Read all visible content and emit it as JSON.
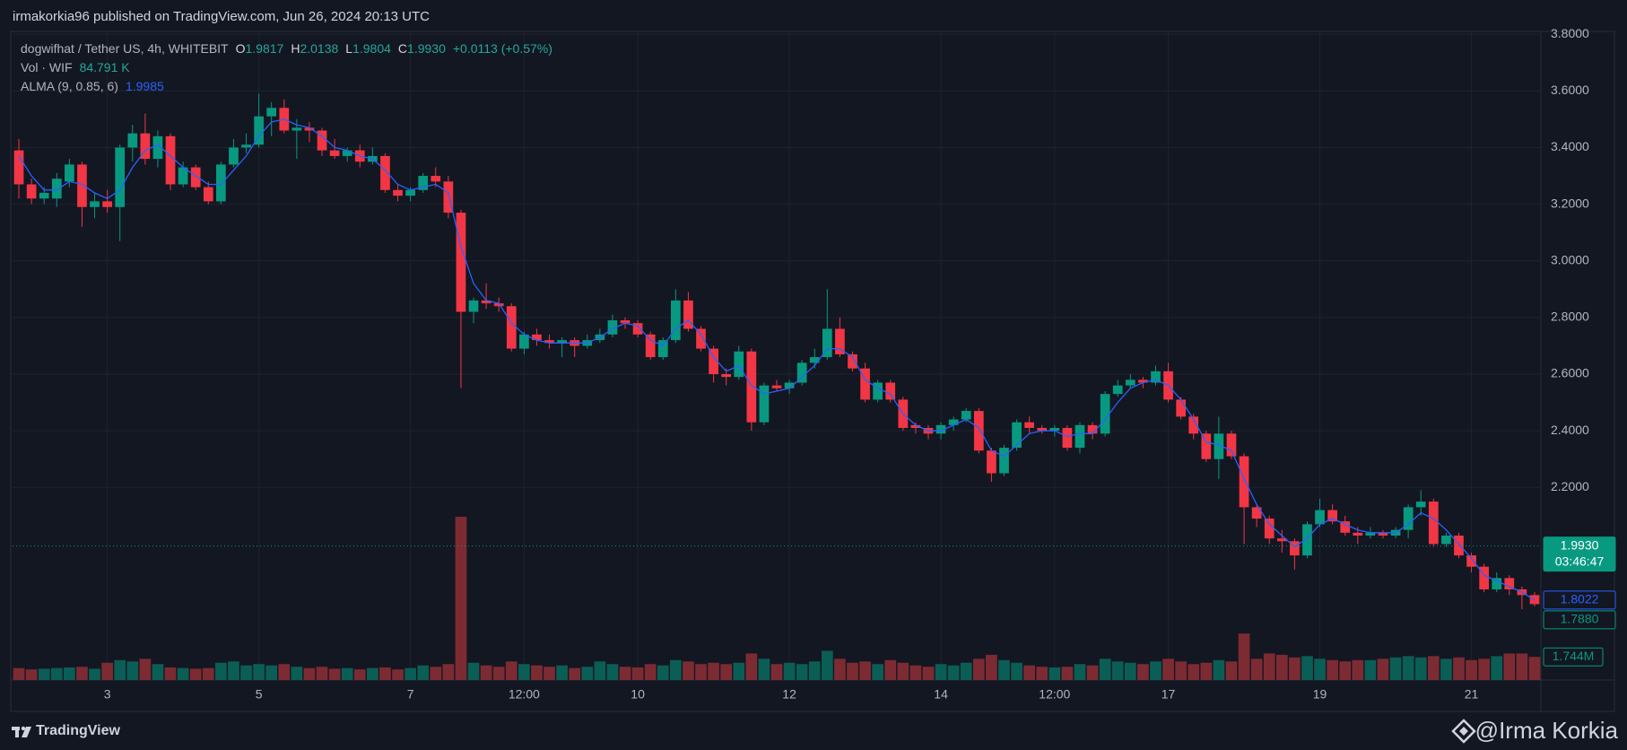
{
  "header": {
    "published": "irmakorkia96 published on TradingView.com, Jun 26, 2024 20:13 UTC"
  },
  "legend": {
    "symbol": "dogwifhat / Tether US, 4h, WHITEBIT",
    "ohlc": [
      {
        "key": "O",
        "value": "1.9817"
      },
      {
        "key": "H",
        "value": "2.0138"
      },
      {
        "key": "L",
        "value": "1.9804"
      },
      {
        "key": "C",
        "value": "1.9930"
      }
    ],
    "change": "+0.0113 (+0.57%)",
    "volume_name": "Vol · WIF",
    "volume_value": "84.791 K",
    "alma_value": "1.9985"
  },
  "chart_data": {
    "type": "candlestick",
    "categories": [
      null,
      null,
      null,
      null,
      null,
      null,
      null,
      "3",
      null,
      null,
      null,
      null,
      null,
      null,
      null,
      null,
      null,
      null,
      null,
      "5",
      null,
      null,
      null,
      null,
      null,
      null,
      null,
      null,
      null,
      null,
      null,
      "7",
      null,
      null,
      null,
      null,
      null,
      null,
      null,
      null,
      "12:00",
      null,
      null,
      null,
      null,
      null,
      null,
      null,
      null,
      "10",
      null,
      null,
      null,
      null,
      null,
      null,
      null,
      null,
      null,
      null,
      null,
      "12",
      null,
      null,
      null,
      null,
      null,
      null,
      null,
      null,
      null,
      null,
      null,
      "14",
      null,
      null,
      null,
      null,
      null,
      null,
      null,
      null,
      "12:00",
      null,
      null,
      null,
      null,
      null,
      null,
      null,
      null,
      "17",
      null,
      null,
      null,
      null,
      null,
      null,
      null,
      null,
      null,
      null,
      null,
      "19",
      null,
      null,
      null,
      null,
      null,
      null,
      null,
      null,
      null,
      null,
      null,
      "21",
      null,
      null,
      null,
      null,
      null
    ],
    "open": [
      3.39,
      3.27,
      3.22,
      3.22,
      3.28,
      3.34,
      3.19,
      3.21,
      3.19,
      3.4,
      3.45,
      3.36,
      3.44,
      3.27,
      3.33,
      3.26,
      3.21,
      3.34,
      3.4,
      3.41,
      3.51,
      3.54,
      3.46,
      3.47,
      3.46,
      3.39,
      3.37,
      3.39,
      3.35,
      3.37,
      3.25,
      3.23,
      3.25,
      3.3,
      3.28,
      3.17,
      2.82,
      2.86,
      2.85,
      2.84,
      2.69,
      2.74,
      2.72,
      2.71,
      2.72,
      2.7,
      2.72,
      2.74,
      2.79,
      2.78,
      2.74,
      2.66,
      2.72,
      2.86,
      2.76,
      2.69,
      2.6,
      2.59,
      2.68,
      2.43,
      2.56,
      2.55,
      2.57,
      2.64,
      2.66,
      2.76,
      2.67,
      2.62,
      2.51,
      2.57,
      2.51,
      2.42,
      2.41,
      2.39,
      2.42,
      2.44,
      2.47,
      2.33,
      2.25,
      2.34,
      2.43,
      2.41,
      2.4,
      2.41,
      2.34,
      2.42,
      2.39,
      2.53,
      2.56,
      2.58,
      2.57,
      2.61,
      2.51,
      2.45,
      2.39,
      2.3,
      2.39,
      2.31,
      2.13,
      2.09,
      2.02,
      2.01,
      1.96,
      2.07,
      2.12,
      2.08,
      2.04,
      2.03,
      2.04,
      2.03,
      2.05,
      2.13,
      2.15,
      2.0,
      2.03,
      1.96,
      1.92,
      1.84,
      1.88,
      1.84,
      1.82
    ],
    "high": [
      3.43,
      3.29,
      3.26,
      3.31,
      3.36,
      3.35,
      3.24,
      3.25,
      3.41,
      3.48,
      3.52,
      3.46,
      3.45,
      3.35,
      3.34,
      3.28,
      3.35,
      3.43,
      3.45,
      3.59,
      3.56,
      3.57,
      3.5,
      3.49,
      3.47,
      3.43,
      3.4,
      3.41,
      3.4,
      3.38,
      3.27,
      3.26,
      3.31,
      3.33,
      3.3,
      3.18,
      2.87,
      2.92,
      2.87,
      2.85,
      2.75,
      2.76,
      2.74,
      2.73,
      2.73,
      2.74,
      2.76,
      2.81,
      2.8,
      2.79,
      2.75,
      2.73,
      2.9,
      2.89,
      2.77,
      2.7,
      2.62,
      2.7,
      2.69,
      2.57,
      2.58,
      2.58,
      2.65,
      2.69,
      2.9,
      2.8,
      2.68,
      2.64,
      2.58,
      2.58,
      2.52,
      2.43,
      2.42,
      2.43,
      2.45,
      2.48,
      2.48,
      2.34,
      2.35,
      2.44,
      2.45,
      2.42,
      2.42,
      2.42,
      2.43,
      2.43,
      2.54,
      2.58,
      2.6,
      2.59,
      2.63,
      2.64,
      2.52,
      2.46,
      2.4,
      2.45,
      2.4,
      2.32,
      2.14,
      2.1,
      2.05,
      2.02,
      2.08,
      2.16,
      2.14,
      2.1,
      2.06,
      2.06,
      2.05,
      2.06,
      2.14,
      2.19,
      2.16,
      2.04,
      2.04,
      1.97,
      1.93,
      1.9,
      1.89,
      1.85,
      1.83
    ],
    "low": [
      3.22,
      3.2,
      3.2,
      3.19,
      3.26,
      3.12,
      3.15,
      3.17,
      3.07,
      3.35,
      3.34,
      3.33,
      3.25,
      3.26,
      3.25,
      3.2,
      3.2,
      3.33,
      3.38,
      3.4,
      3.44,
      3.45,
      3.36,
      3.42,
      3.37,
      3.36,
      3.35,
      3.33,
      3.34,
      3.24,
      3.21,
      3.21,
      3.24,
      3.26,
      3.15,
      2.55,
      2.78,
      2.83,
      2.82,
      2.68,
      2.67,
      2.7,
      2.69,
      2.66,
      2.66,
      2.69,
      2.71,
      2.73,
      2.76,
      2.73,
      2.65,
      2.65,
      2.71,
      2.75,
      2.68,
      2.57,
      2.56,
      2.58,
      2.4,
      2.42,
      2.54,
      2.53,
      2.56,
      2.62,
      2.65,
      2.66,
      2.61,
      2.5,
      2.5,
      2.5,
      2.4,
      2.39,
      2.37,
      2.37,
      2.4,
      2.43,
      2.32,
      2.22,
      2.24,
      2.33,
      2.39,
      2.39,
      2.38,
      2.33,
      2.32,
      2.37,
      2.38,
      2.52,
      2.55,
      2.55,
      2.56,
      2.5,
      2.44,
      2.37,
      2.29,
      2.23,
      2.3,
      2.0,
      2.06,
      2.0,
      1.97,
      1.91,
      1.95,
      2.06,
      2.07,
      2.03,
      2.0,
      2.02,
      2.02,
      2.02,
      2.02,
      2.1,
      1.99,
      1.99,
      1.95,
      1.9,
      1.83,
      1.83,
      1.82,
      1.77,
      1.78
    ],
    "close": [
      3.27,
      3.22,
      3.24,
      3.29,
      3.34,
      3.19,
      3.21,
      3.19,
      3.4,
      3.45,
      3.36,
      3.44,
      3.27,
      3.33,
      3.26,
      3.21,
      3.34,
      3.4,
      3.41,
      3.51,
      3.54,
      3.46,
      3.47,
      3.46,
      3.39,
      3.37,
      3.39,
      3.35,
      3.37,
      3.25,
      3.23,
      3.25,
      3.3,
      3.28,
      3.17,
      2.82,
      2.86,
      2.85,
      2.84,
      2.69,
      2.74,
      2.72,
      2.71,
      2.72,
      2.7,
      2.72,
      2.74,
      2.79,
      2.78,
      2.74,
      2.66,
      2.72,
      2.86,
      2.76,
      2.69,
      2.6,
      2.59,
      2.68,
      2.43,
      2.56,
      2.55,
      2.57,
      2.64,
      2.66,
      2.76,
      2.67,
      2.62,
      2.51,
      2.57,
      2.51,
      2.41,
      2.41,
      2.39,
      2.42,
      2.44,
      2.47,
      2.33,
      2.25,
      2.34,
      2.43,
      2.41,
      2.4,
      2.41,
      2.34,
      2.42,
      2.39,
      2.53,
      2.56,
      2.58,
      2.57,
      2.61,
      2.51,
      2.45,
      2.39,
      2.3,
      2.39,
      2.31,
      2.13,
      2.09,
      2.02,
      2.01,
      1.96,
      2.07,
      2.12,
      2.08,
      2.04,
      2.03,
      2.04,
      2.03,
      2.05,
      2.13,
      2.15,
      2.0,
      2.03,
      1.96,
      1.92,
      1.84,
      1.88,
      1.84,
      1.82,
      1.788
    ],
    "volume": [
      0.9,
      0.8,
      0.85,
      0.9,
      0.95,
      1.0,
      0.85,
      1.3,
      1.5,
      1.4,
      1.6,
      1.2,
      0.95,
      0.9,
      0.85,
      0.9,
      1.3,
      1.4,
      1.1,
      1.2,
      1.1,
      1.2,
      1.0,
      0.9,
      1.0,
      0.85,
      0.9,
      0.8,
      0.9,
      0.95,
      0.8,
      0.9,
      1.1,
      1.0,
      1.2,
      12.3,
      1.3,
      1.1,
      1.0,
      1.4,
      1.2,
      1.1,
      1.0,
      1.1,
      0.9,
      1.0,
      1.4,
      1.2,
      1.0,
      0.95,
      1.2,
      1.1,
      1.5,
      1.4,
      1.2,
      1.3,
      1.2,
      1.3,
      2.0,
      1.6,
      1.2,
      1.3,
      1.2,
      1.4,
      2.2,
      1.6,
      1.3,
      1.4,
      1.2,
      1.5,
      1.3,
      1.1,
      1.0,
      1.2,
      1.1,
      1.3,
      1.6,
      1.9,
      1.5,
      1.3,
      1.1,
      1.0,
      0.95,
      1.0,
      1.2,
      1.1,
      1.6,
      1.4,
      1.3,
      1.2,
      1.4,
      1.6,
      1.4,
      1.2,
      1.3,
      1.5,
      1.4,
      3.5,
      1.6,
      2.0,
      1.9,
      1.7,
      1.8,
      1.6,
      1.5,
      1.4,
      1.5,
      1.5,
      1.6,
      1.7,
      1.8,
      1.7,
      1.8,
      1.6,
      1.7,
      1.5,
      1.6,
      1.8,
      2.0,
      2.0,
      1.744
    ],
    "alma": {
      "name": "ALMA (9, 0.85, 6)",
      "color": "#2962ff",
      "values": [
        3.37,
        3.3,
        3.25,
        3.25,
        3.28,
        3.27,
        3.24,
        3.22,
        3.25,
        3.33,
        3.39,
        3.41,
        3.37,
        3.33,
        3.3,
        3.27,
        3.27,
        3.32,
        3.37,
        3.44,
        3.49,
        3.5,
        3.48,
        3.47,
        3.44,
        3.4,
        3.39,
        3.37,
        3.36,
        3.32,
        3.27,
        3.25,
        3.26,
        3.27,
        3.24,
        3.05,
        2.92,
        2.86,
        2.85,
        2.78,
        2.74,
        2.72,
        2.71,
        2.71,
        2.71,
        2.71,
        2.73,
        2.76,
        2.78,
        2.77,
        2.72,
        2.7,
        2.76,
        2.79,
        2.74,
        2.66,
        2.61,
        2.63,
        2.56,
        2.53,
        2.54,
        2.55,
        2.59,
        2.63,
        2.69,
        2.69,
        2.66,
        2.58,
        2.55,
        2.53,
        2.46,
        2.42,
        2.4,
        2.4,
        2.42,
        2.44,
        2.41,
        2.33,
        2.31,
        2.35,
        2.39,
        2.4,
        2.4,
        2.38,
        2.39,
        2.39,
        2.44,
        2.5,
        2.55,
        2.57,
        2.58,
        2.56,
        2.51,
        2.44,
        2.36,
        2.35,
        2.33,
        2.23,
        2.14,
        2.07,
        2.03,
        1.99,
        2.02,
        2.07,
        2.09,
        2.07,
        2.05,
        2.04,
        2.04,
        2.04,
        2.07,
        2.11,
        2.09,
        2.05,
        2.0,
        1.95,
        1.89,
        1.87,
        1.85,
        1.83,
        1.8022
      ]
    },
    "up_color": "#089981",
    "down_color": "#f23645",
    "volume_up_color": "#0b5e55",
    "volume_down_color": "#7d2b33",
    "ylim": [
      1.52,
      3.81
    ],
    "yticks": [
      {
        "value": 2.2,
        "label": "2.2000"
      },
      {
        "value": 2.4,
        "label": "2.4000"
      },
      {
        "value": 2.6,
        "label": "2.6000"
      },
      {
        "value": 2.8,
        "label": "2.8000"
      },
      {
        "value": 3.0,
        "label": "3.0000"
      },
      {
        "value": 3.2,
        "label": "3.2000"
      },
      {
        "value": 3.4,
        "label": "3.4000"
      },
      {
        "value": 3.6,
        "label": "3.6000"
      },
      {
        "value": 3.8,
        "label": "3.8000"
      }
    ],
    "grid": true,
    "price_labels": [
      {
        "value": 1.993,
        "label": "1.9930",
        "sub": "03:46:47",
        "color": "#089981",
        "filled": true
      },
      {
        "value": 1.8022,
        "label": "1.8022",
        "color": "#2962ff",
        "filled": false
      },
      {
        "value": 1.788,
        "label": "1.7880",
        "color": "#089981",
        "filled": false
      }
    ],
    "volume_label": {
      "value": 1.744,
      "label": "1.744M",
      "color": "#089981"
    }
  },
  "footer": {
    "brand": "TradingView",
    "author": "@Irma Korkia"
  }
}
